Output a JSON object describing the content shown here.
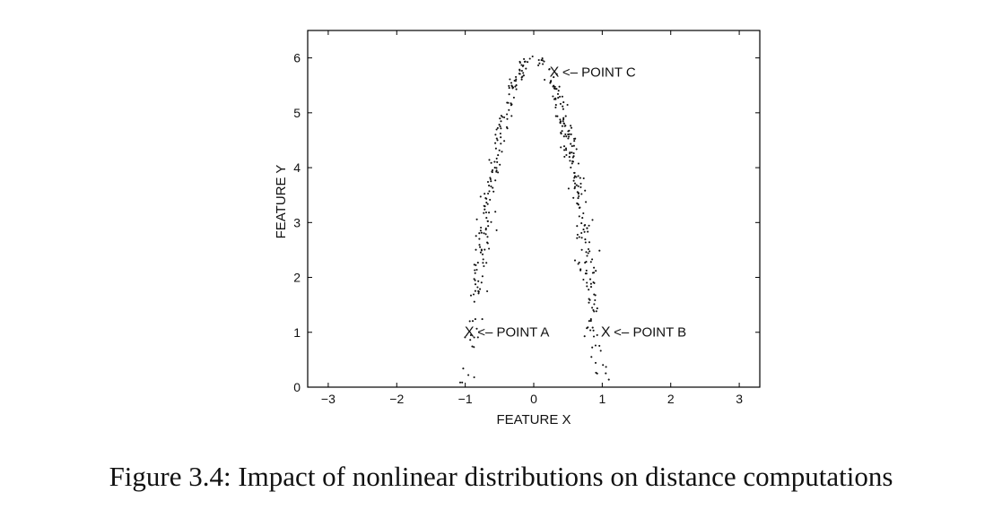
{
  "chart_data": {
    "type": "scatter",
    "title": "",
    "xlabel": "FEATURE X",
    "ylabel": "FEATURE Y",
    "xlim": [
      -3.3,
      3.3
    ],
    "ylim": [
      0,
      6.5
    ],
    "xticks": [
      -3,
      -2,
      -1,
      0,
      1,
      2,
      3
    ],
    "xtick_labels": [
      "−3",
      "−2",
      "−1",
      "0",
      "1",
      "2",
      "3"
    ],
    "yticks": [
      0,
      1,
      2,
      3,
      4,
      5,
      6
    ],
    "ytick_labels": [
      "0",
      "1",
      "2",
      "3",
      "4",
      "5",
      "6"
    ],
    "grid": false,
    "legend": "none",
    "distribution": {
      "shape": "inverted parabola",
      "apex": [
        0,
        6
      ],
      "x_range": [
        -1,
        1
      ],
      "equation": "y = 6 * (1 - x^2)",
      "point_count": 400,
      "approx_spread_x": 0.08
    },
    "points_sample": [
      {
        "x": -1.0,
        "y": 0.0
      },
      {
        "x": -0.9,
        "y": 1.1
      },
      {
        "x": -0.8,
        "y": 2.2
      },
      {
        "x": -0.7,
        "y": 3.1
      },
      {
        "x": -0.6,
        "y": 3.8
      },
      {
        "x": -0.5,
        "y": 4.5
      },
      {
        "x": -0.4,
        "y": 5.0
      },
      {
        "x": -0.3,
        "y": 5.5
      },
      {
        "x": -0.2,
        "y": 5.8
      },
      {
        "x": -0.1,
        "y": 5.9
      },
      {
        "x": 0.0,
        "y": 6.0
      },
      {
        "x": 0.1,
        "y": 5.9
      },
      {
        "x": 0.2,
        "y": 5.8
      },
      {
        "x": 0.3,
        "y": 5.5
      },
      {
        "x": 0.4,
        "y": 5.0
      },
      {
        "x": 0.5,
        "y": 4.5
      },
      {
        "x": 0.6,
        "y": 3.8
      },
      {
        "x": 0.7,
        "y": 3.1
      },
      {
        "x": 0.8,
        "y": 2.2
      },
      {
        "x": 0.9,
        "y": 1.1
      },
      {
        "x": 1.0,
        "y": 0.0
      }
    ],
    "annotations": [
      {
        "name": "point-a",
        "marker": "X",
        "label": "<– POINT A",
        "x": -0.94,
        "y": 1.02
      },
      {
        "name": "point-b",
        "marker": "X",
        "label": "<– POINT B",
        "x": 1.05,
        "y": 1.02
      },
      {
        "name": "point-c",
        "marker": "X",
        "label": "<– POINT C",
        "x": 0.3,
        "y": 5.76
      }
    ]
  },
  "caption": "Figure 3.4: Impact of nonlinear distributions on distance computations"
}
